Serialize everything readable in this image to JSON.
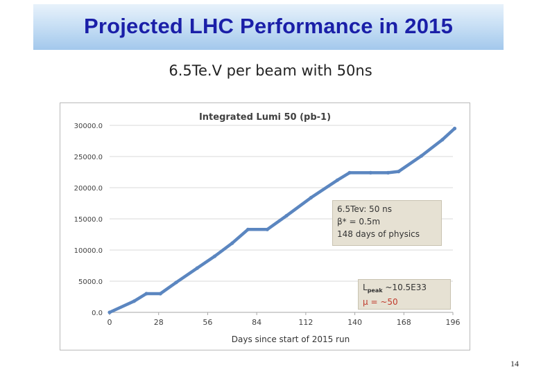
{
  "slide": {
    "title": "Projected LHC Performance in 2015",
    "subtitle": "6.5Te.V per beam with 50ns",
    "page_number": "14"
  },
  "annotations": {
    "config_lines": [
      "6.5Tev: 50 ns",
      "β* = 0.5m",
      "148 days of physics"
    ],
    "lpeak_main": "L",
    "lpeak_sub": "peak",
    "lpeak_value": " ~10.5E33",
    "mu_line": "μ = ~50"
  },
  "chart_data": {
    "type": "line",
    "title": "Integrated Lumi 50 (pb-1)",
    "xlabel": "Days since start of 2015 run",
    "ylabel": "",
    "xlim": [
      0,
      196
    ],
    "ylim": [
      0,
      30000
    ],
    "x_ticks": [
      0,
      28,
      56,
      84,
      112,
      140,
      168,
      196
    ],
    "y_ticks": [
      0,
      5000,
      10000,
      15000,
      20000,
      25000,
      30000
    ],
    "y_tick_labels": [
      "0.0",
      "5000.0",
      "10000.0",
      "15000.0",
      "20000.0",
      "25000.0",
      "30000.0"
    ],
    "grid": true,
    "series_color": "#5b86c0",
    "series": [
      {
        "points": [
          [
            0,
            0
          ],
          [
            14,
            1800
          ],
          [
            21,
            3000
          ],
          [
            29,
            3000
          ],
          [
            38,
            4800
          ],
          [
            50,
            7100
          ],
          [
            60,
            9000
          ],
          [
            70,
            11100
          ],
          [
            79,
            13300
          ],
          [
            90,
            13300
          ],
          [
            101,
            15500
          ],
          [
            115,
            18400
          ],
          [
            130,
            21200
          ],
          [
            137,
            22400
          ],
          [
            149,
            22400
          ],
          [
            159,
            22400
          ],
          [
            165,
            22600
          ],
          [
            178,
            25100
          ],
          [
            190,
            27700
          ],
          [
            197,
            29500
          ]
        ]
      }
    ]
  }
}
